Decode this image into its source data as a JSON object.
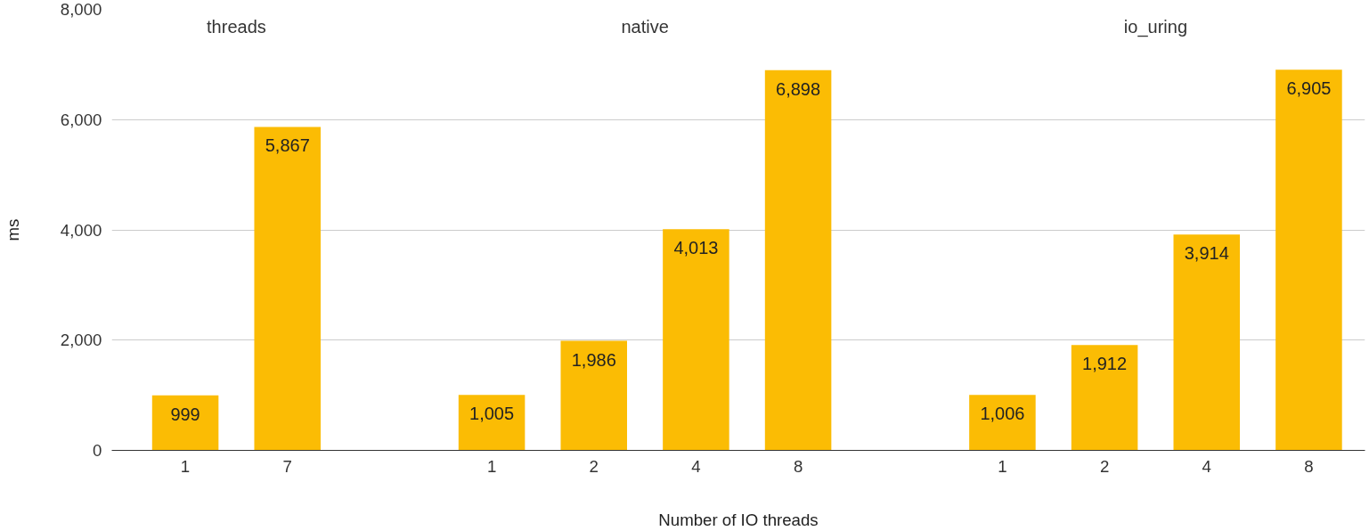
{
  "chart_data": {
    "type": "bar",
    "xlabel": "Number of IO threads",
    "ylabel": "ms",
    "categories": [
      "1",
      "7",
      null,
      "1",
      "2",
      "4",
      "8",
      null,
      "1",
      "2",
      "4",
      "8"
    ],
    "values": [
      999,
      5867,
      null,
      1005,
      1986,
      4013,
      6898,
      null,
      1006,
      1912,
      3914,
      6905
    ],
    "value_labels": [
      "999",
      "5,867",
      null,
      "1,005",
      "1,986",
      "4,013",
      "6,898",
      null,
      "1,006",
      "1,912",
      "3,914",
      "6,905"
    ],
    "color": "#fbbc04",
    "ylim": [
      0,
      8000
    ],
    "yticks": [
      0,
      {
        "value": 2000,
        "label": "2,000"
      },
      {
        "value": 4000,
        "label": "4,000"
      },
      {
        "value": 6000,
        "label": "6,000"
      },
      {
        "value": 8000,
        "label": "8,000"
      }
    ],
    "grid": "y",
    "annotations": [
      "threads",
      "native",
      "io_uring"
    ]
  }
}
